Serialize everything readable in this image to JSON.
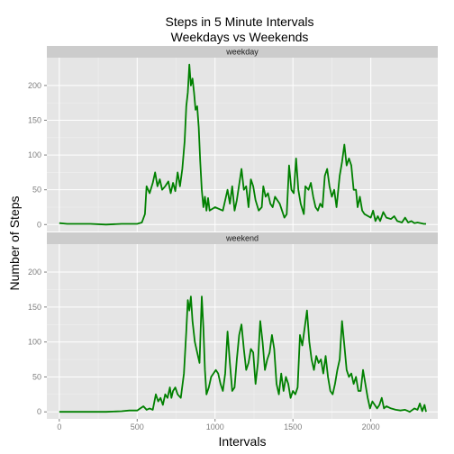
{
  "chart_data": {
    "type": "line",
    "title": "Steps in 5 Minute Intervals\nWeekdays vs Weekends",
    "xlabel": "Intervals",
    "ylabel": "Number of Steps",
    "xlim": [
      -80,
      2430
    ],
    "ylim": [
      -10,
      240
    ],
    "x_ticks": [
      0,
      500,
      1000,
      1500,
      2000
    ],
    "y_ticks": [
      0,
      50,
      100,
      150,
      200
    ],
    "grid": true,
    "line_color": "#008000",
    "panel_bg": "#e5e5e5",
    "strip_bg": "#cccccc",
    "panels": [
      {
        "label": "weekday",
        "points": [
          [
            0,
            2
          ],
          [
            50,
            1
          ],
          [
            100,
            1
          ],
          [
            200,
            1
          ],
          [
            300,
            0
          ],
          [
            400,
            1
          ],
          [
            500,
            1
          ],
          [
            530,
            3
          ],
          [
            550,
            15
          ],
          [
            560,
            55
          ],
          [
            580,
            45
          ],
          [
            600,
            60
          ],
          [
            615,
            75
          ],
          [
            630,
            55
          ],
          [
            645,
            65
          ],
          [
            660,
            50
          ],
          [
            680,
            55
          ],
          [
            700,
            62
          ],
          [
            715,
            45
          ],
          [
            730,
            60
          ],
          [
            745,
            48
          ],
          [
            760,
            75
          ],
          [
            775,
            55
          ],
          [
            790,
            80
          ],
          [
            805,
            120
          ],
          [
            815,
            170
          ],
          [
            825,
            190
          ],
          [
            835,
            230
          ],
          [
            845,
            200
          ],
          [
            855,
            210
          ],
          [
            865,
            190
          ],
          [
            875,
            165
          ],
          [
            885,
            170
          ],
          [
            895,
            140
          ],
          [
            905,
            90
          ],
          [
            915,
            50
          ],
          [
            925,
            25
          ],
          [
            935,
            40
          ],
          [
            945,
            20
          ],
          [
            955,
            38
          ],
          [
            965,
            20
          ],
          [
            1000,
            25
          ],
          [
            1050,
            20
          ],
          [
            1080,
            50
          ],
          [
            1095,
            30
          ],
          [
            1110,
            55
          ],
          [
            1125,
            20
          ],
          [
            1140,
            35
          ],
          [
            1170,
            80
          ],
          [
            1185,
            50
          ],
          [
            1200,
            55
          ],
          [
            1215,
            25
          ],
          [
            1230,
            65
          ],
          [
            1245,
            55
          ],
          [
            1260,
            35
          ],
          [
            1280,
            20
          ],
          [
            1300,
            25
          ],
          [
            1310,
            55
          ],
          [
            1325,
            40
          ],
          [
            1340,
            45
          ],
          [
            1355,
            30
          ],
          [
            1370,
            25
          ],
          [
            1385,
            40
          ],
          [
            1400,
            35
          ],
          [
            1415,
            30
          ],
          [
            1430,
            20
          ],
          [
            1445,
            10
          ],
          [
            1460,
            15
          ],
          [
            1475,
            85
          ],
          [
            1490,
            50
          ],
          [
            1505,
            45
          ],
          [
            1520,
            95
          ],
          [
            1535,
            50
          ],
          [
            1550,
            30
          ],
          [
            1570,
            15
          ],
          [
            1580,
            55
          ],
          [
            1600,
            50
          ],
          [
            1615,
            60
          ],
          [
            1630,
            40
          ],
          [
            1645,
            25
          ],
          [
            1660,
            20
          ],
          [
            1675,
            30
          ],
          [
            1690,
            25
          ],
          [
            1705,
            70
          ],
          [
            1720,
            80
          ],
          [
            1735,
            55
          ],
          [
            1750,
            40
          ],
          [
            1765,
            50
          ],
          [
            1780,
            25
          ],
          [
            1800,
            70
          ],
          [
            1815,
            90
          ],
          [
            1830,
            115
          ],
          [
            1845,
            85
          ],
          [
            1860,
            95
          ],
          [
            1875,
            85
          ],
          [
            1890,
            50
          ],
          [
            1905,
            50
          ],
          [
            1915,
            25
          ],
          [
            1930,
            40
          ],
          [
            1945,
            20
          ],
          [
            1960,
            15
          ],
          [
            2000,
            10
          ],
          [
            2015,
            20
          ],
          [
            2030,
            5
          ],
          [
            2045,
            12
          ],
          [
            2060,
            5
          ],
          [
            2080,
            18
          ],
          [
            2100,
            10
          ],
          [
            2130,
            8
          ],
          [
            2150,
            12
          ],
          [
            2170,
            5
          ],
          [
            2200,
            3
          ],
          [
            2220,
            10
          ],
          [
            2240,
            3
          ],
          [
            2260,
            5
          ],
          [
            2280,
            2
          ],
          [
            2300,
            3
          ],
          [
            2320,
            2
          ],
          [
            2340,
            1
          ],
          [
            2355,
            1
          ]
        ]
      },
      {
        "label": "weekend",
        "points": [
          [
            0,
            0
          ],
          [
            50,
            0
          ],
          [
            100,
            0
          ],
          [
            200,
            0
          ],
          [
            300,
            0
          ],
          [
            400,
            1
          ],
          [
            450,
            2
          ],
          [
            500,
            2
          ],
          [
            520,
            5
          ],
          [
            540,
            8
          ],
          [
            560,
            3
          ],
          [
            580,
            5
          ],
          [
            600,
            3
          ],
          [
            620,
            25
          ],
          [
            635,
            15
          ],
          [
            650,
            20
          ],
          [
            665,
            10
          ],
          [
            680,
            25
          ],
          [
            695,
            20
          ],
          [
            710,
            35
          ],
          [
            720,
            20
          ],
          [
            730,
            30
          ],
          [
            745,
            35
          ],
          [
            760,
            25
          ],
          [
            780,
            20
          ],
          [
            800,
            55
          ],
          [
            815,
            115
          ],
          [
            825,
            160
          ],
          [
            835,
            145
          ],
          [
            845,
            165
          ],
          [
            855,
            130
          ],
          [
            870,
            100
          ],
          [
            885,
            85
          ],
          [
            900,
            70
          ],
          [
            915,
            165
          ],
          [
            925,
            120
          ],
          [
            935,
            60
          ],
          [
            945,
            25
          ],
          [
            960,
            35
          ],
          [
            975,
            50
          ],
          [
            990,
            55
          ],
          [
            1005,
            60
          ],
          [
            1020,
            55
          ],
          [
            1035,
            40
          ],
          [
            1050,
            30
          ],
          [
            1065,
            55
          ],
          [
            1080,
            115
          ],
          [
            1095,
            70
          ],
          [
            1110,
            30
          ],
          [
            1125,
            35
          ],
          [
            1140,
            75
          ],
          [
            1155,
            110
          ],
          [
            1170,
            125
          ],
          [
            1185,
            90
          ],
          [
            1200,
            60
          ],
          [
            1215,
            70
          ],
          [
            1230,
            90
          ],
          [
            1245,
            85
          ],
          [
            1260,
            40
          ],
          [
            1275,
            70
          ],
          [
            1290,
            130
          ],
          [
            1305,
            100
          ],
          [
            1320,
            60
          ],
          [
            1335,
            75
          ],
          [
            1350,
            85
          ],
          [
            1365,
            110
          ],
          [
            1380,
            90
          ],
          [
            1395,
            40
          ],
          [
            1410,
            25
          ],
          [
            1425,
            55
          ],
          [
            1440,
            30
          ],
          [
            1455,
            50
          ],
          [
            1470,
            40
          ],
          [
            1485,
            20
          ],
          [
            1500,
            30
          ],
          [
            1515,
            25
          ],
          [
            1530,
            35
          ],
          [
            1545,
            110
          ],
          [
            1560,
            95
          ],
          [
            1575,
            120
          ],
          [
            1590,
            145
          ],
          [
            1605,
            100
          ],
          [
            1620,
            75
          ],
          [
            1635,
            60
          ],
          [
            1650,
            80
          ],
          [
            1665,
            70
          ],
          [
            1680,
            75
          ],
          [
            1695,
            55
          ],
          [
            1710,
            80
          ],
          [
            1725,
            50
          ],
          [
            1740,
            30
          ],
          [
            1755,
            25
          ],
          [
            1770,
            40
          ],
          [
            1785,
            60
          ],
          [
            1800,
            75
          ],
          [
            1815,
            130
          ],
          [
            1830,
            95
          ],
          [
            1845,
            60
          ],
          [
            1860,
            50
          ],
          [
            1875,
            55
          ],
          [
            1890,
            40
          ],
          [
            1905,
            50
          ],
          [
            1920,
            30
          ],
          [
            1935,
            30
          ],
          [
            1950,
            60
          ],
          [
            1965,
            40
          ],
          [
            1980,
            20
          ],
          [
            1995,
            5
          ],
          [
            2010,
            15
          ],
          [
            2025,
            10
          ],
          [
            2040,
            5
          ],
          [
            2055,
            10
          ],
          [
            2070,
            20
          ],
          [
            2085,
            5
          ],
          [
            2100,
            8
          ],
          [
            2130,
            5
          ],
          [
            2160,
            3
          ],
          [
            2190,
            2
          ],
          [
            2220,
            3
          ],
          [
            2250,
            0
          ],
          [
            2280,
            5
          ],
          [
            2300,
            3
          ],
          [
            2315,
            12
          ],
          [
            2330,
            1
          ],
          [
            2345,
            10
          ],
          [
            2355,
            0
          ]
        ]
      }
    ]
  }
}
